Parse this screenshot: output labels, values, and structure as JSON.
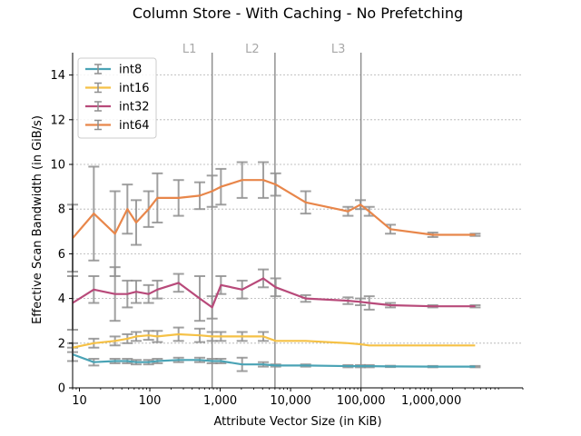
{
  "chart_data": {
    "type": "line",
    "title": "Column Store - With Caching - No Prefetching",
    "xlabel": "Attribute Vector Size (in KiB)",
    "ylabel": "Effective Scan Bandwidth (in GiB/s)",
    "xscale": "log",
    "xlim": [
      8,
      20000000
    ],
    "ylim": [
      0,
      15
    ],
    "xticks": [
      {
        "value": 10,
        "label": "10"
      },
      {
        "value": 100,
        "label": "100"
      },
      {
        "value": 1000,
        "label": "1,000"
      },
      {
        "value": 10000,
        "label": "10,000"
      },
      {
        "value": 100000,
        "label": "100,000"
      },
      {
        "value": 1000000,
        "label": "1,000,000"
      }
    ],
    "yticks": [
      0,
      2,
      4,
      6,
      8,
      10,
      12,
      14
    ],
    "grid": "horizontal-dashed",
    "legend_position": "top-left",
    "cache_lines": [
      {
        "label": "L1",
        "x": 768
      },
      {
        "label": "L2",
        "x": 6000
      },
      {
        "label": "L3",
        "x": 100000
      }
    ],
    "x": [
      8,
      16,
      32,
      48,
      64,
      96,
      128,
      256,
      512,
      768,
      1024,
      2048,
      4096,
      6144,
      16384,
      65536,
      98304,
      131072,
      262144,
      1048576,
      4194304
    ],
    "series": [
      {
        "name": "int8",
        "color": "#4aa3b5",
        "values": [
          1.5,
          1.15,
          1.2,
          1.2,
          1.15,
          1.15,
          1.2,
          1.25,
          1.25,
          1.2,
          1.2,
          1.05,
          1.05,
          1.0,
          1.0,
          0.97,
          0.97,
          0.97,
          0.96,
          0.95,
          0.95
        ],
        "err": [
          0.3,
          0.15,
          0.1,
          0.1,
          0.1,
          0.1,
          0.1,
          0.1,
          0.1,
          0.1,
          0.1,
          0.3,
          0.1,
          0.05,
          0.05,
          0.05,
          0.05,
          0.05,
          0.03,
          0.03,
          0.03
        ]
      },
      {
        "name": "int16",
        "color": "#f5c146",
        "values": [
          1.8,
          2.0,
          2.1,
          2.2,
          2.3,
          2.35,
          2.3,
          2.4,
          2.35,
          2.3,
          2.3,
          2.3,
          2.3,
          2.1,
          2.1,
          2.0,
          1.95,
          1.9,
          1.9,
          1.9,
          1.9
        ],
        "err": [
          0.2,
          0.2,
          0.2,
          0.2,
          0.2,
          0.2,
          0.25,
          0.3,
          0.3,
          0.2,
          0.2,
          0.2,
          0.2,
          0.1,
          0.1,
          0.05,
          0.05,
          0.05,
          0.05,
          0.05,
          0.05
        ],
        "err_visible": "partial"
      },
      {
        "name": "int32",
        "color": "#b84a7a",
        "values": [
          3.8,
          4.4,
          4.2,
          4.2,
          4.3,
          4.2,
          4.4,
          4.7,
          4.0,
          3.6,
          4.6,
          4.4,
          4.9,
          4.5,
          4.0,
          3.9,
          3.85,
          3.8,
          3.7,
          3.65,
          3.65
        ],
        "err": [
          1.2,
          0.6,
          1.2,
          0.6,
          0.5,
          0.4,
          0.4,
          0.4,
          1.0,
          0.5,
          0.4,
          0.4,
          0.4,
          0.4,
          0.15,
          0.15,
          0.15,
          0.3,
          0.1,
          0.05,
          0.05
        ]
      },
      {
        "name": "int64",
        "color": "#e8864a",
        "values": [
          6.7,
          7.8,
          6.9,
          8.0,
          7.4,
          8.0,
          8.5,
          8.5,
          8.6,
          8.8,
          9.0,
          9.3,
          9.3,
          9.1,
          8.3,
          7.9,
          8.2,
          7.9,
          7.1,
          6.85,
          6.85
        ],
        "err": [
          1.5,
          2.1,
          1.9,
          1.1,
          1.0,
          0.8,
          1.1,
          0.8,
          0.6,
          0.7,
          0.8,
          0.8,
          0.8,
          0.5,
          0.5,
          0.2,
          0.2,
          0.2,
          0.2,
          0.1,
          0.05
        ]
      }
    ]
  }
}
